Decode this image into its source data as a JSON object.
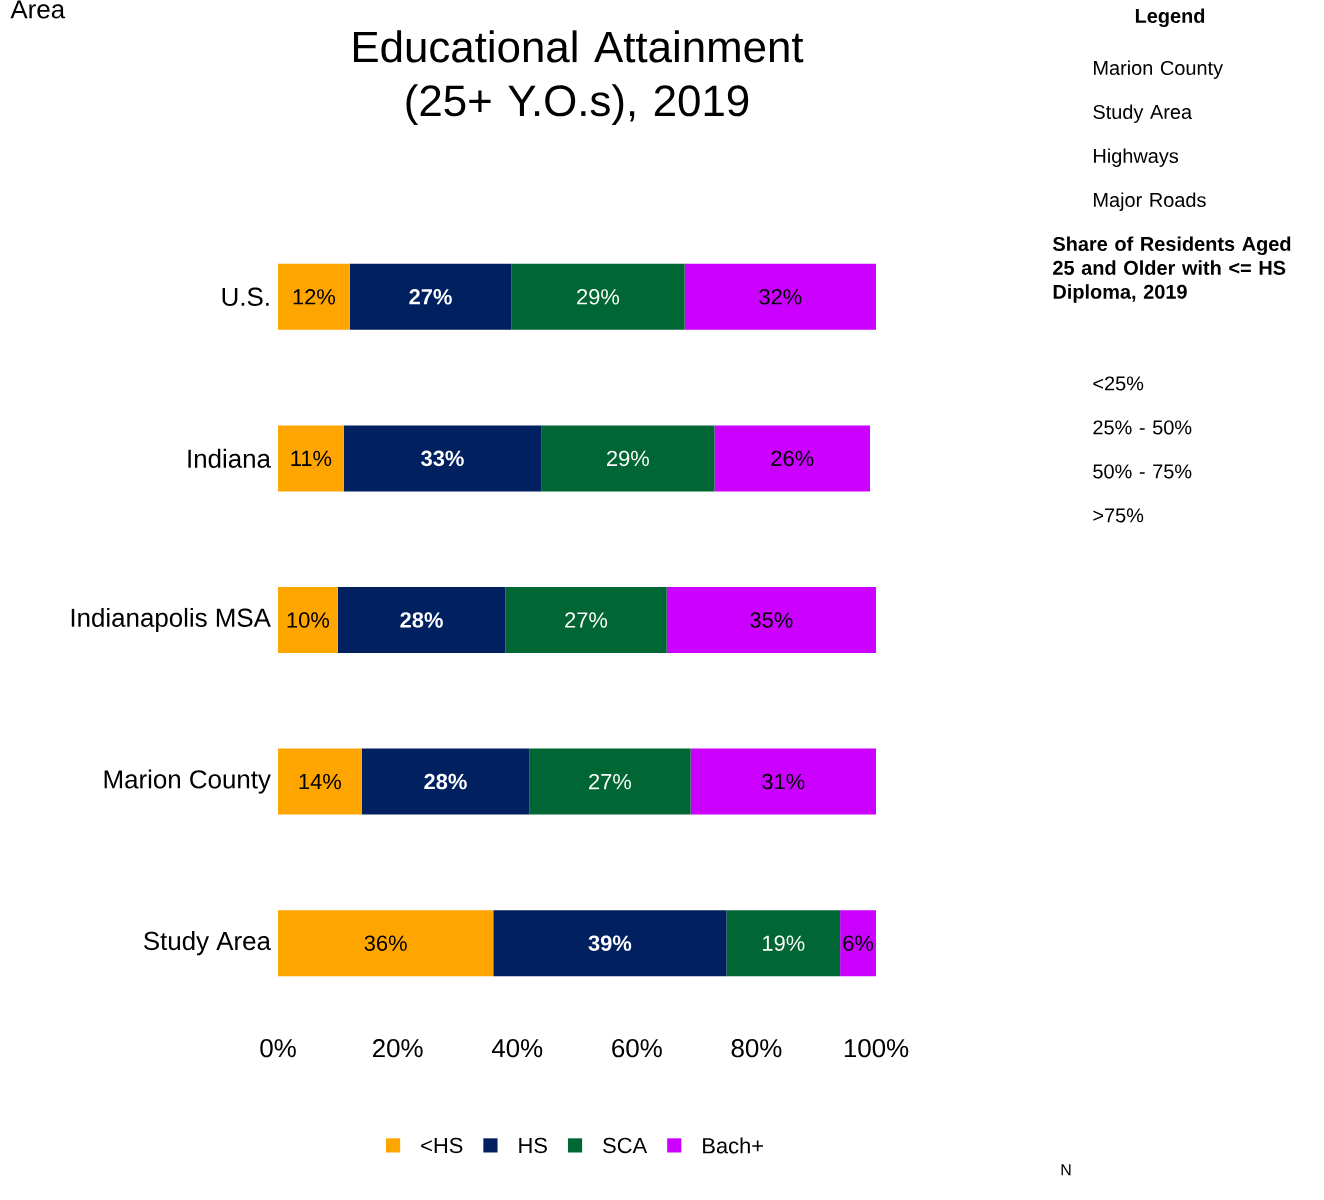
{
  "chart_data": {
    "type": "bar",
    "orientation": "horizontal",
    "stacked": true,
    "title": "Educational Attainment (25+ Y.O.s), 2019",
    "categories": [
      "U.S.",
      "Indiana",
      "Indianapolis MSA",
      "Marion County",
      "Study Area"
    ],
    "series": [
      {
        "name": "<HS",
        "color": "#ffa500",
        "values": [
          12,
          11,
          10,
          14,
          36
        ],
        "value_labels": [
          "12%",
          "11%",
          "10%",
          "14%",
          "36%"
        ]
      },
      {
        "name": "HS",
        "color": "#002060",
        "values": [
          27,
          33,
          28,
          28,
          39
        ],
        "value_labels": [
          "27%",
          "33%",
          "28%",
          "28%",
          "39%"
        ]
      },
      {
        "name": "SCA",
        "color": "#006633",
        "values": [
          29,
          29,
          27,
          27,
          19
        ],
        "value_labels": [
          "29%",
          "29%",
          "27%",
          "27%",
          "19%"
        ]
      },
      {
        "name": "Bach+",
        "color": "#cc00ff",
        "values": [
          32,
          26,
          35,
          31,
          6
        ],
        "value_labels": [
          "32%",
          "26%",
          "35%",
          "31%",
          "6%"
        ]
      }
    ],
    "xlim": [
      0,
      100
    ],
    "xticks": [
      {
        "value": 0,
        "label": "0%"
      },
      {
        "value": 20,
        "label": "20%"
      },
      {
        "value": 40,
        "label": "40%"
      },
      {
        "value": 60,
        "label": "60%"
      },
      {
        "value": 80,
        "label": "80%"
      },
      {
        "value": 100,
        "label": "100%"
      }
    ],
    "legend": "bottom",
    "grid": false,
    "annotations": [
      "Area",
      "Legend",
      "Marion County",
      "Study Area",
      "Highways",
      "Major Roads",
      "Share of Residents Aged 25 and Older with <= HS Diploma, 2019",
      "<25%",
      "25% - 50%",
      "50% - 75%",
      ">75%",
      "N"
    ]
  }
}
